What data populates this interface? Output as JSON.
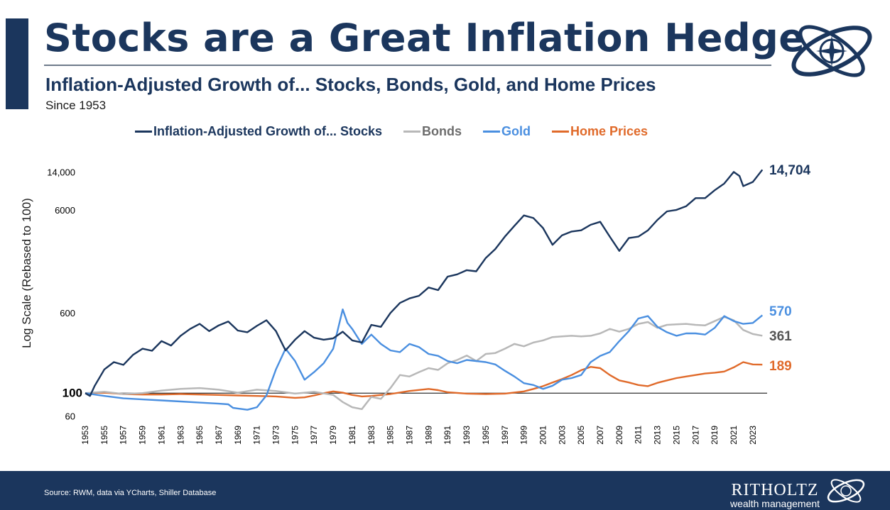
{
  "header": {
    "title": "Stocks are a Great Inflation Hedge",
    "subtitle": "Inflation-Adjusted Growth of... Stocks, Bonds, Gold, and Home Prices",
    "since": "Since 1953"
  },
  "legend": [
    {
      "label": "Inflation-Adjusted Growth of... Stocks",
      "color": "#1b365d"
    },
    {
      "label": "Bonds",
      "color": "#b8b8b8"
    },
    {
      "label": "Gold",
      "color": "#4a8fe0"
    },
    {
      "label": "Home Prices",
      "color": "#e06a2a"
    }
  ],
  "chart_data": {
    "type": "line",
    "ylabel": "Log Scale (Rebased to 100)",
    "yscale": "log",
    "ylim": [
      55,
      16000
    ],
    "xlim": [
      1953,
      2024.5
    ],
    "y_ticks": [
      {
        "value": 60,
        "label": "60"
      },
      {
        "value": 100,
        "label": "100"
      },
      {
        "value": 600,
        "label": "600"
      },
      {
        "value": 6000,
        "label": "6000"
      },
      {
        "value": 14000,
        "label": "14,000"
      }
    ],
    "x_ticks": [
      "1953",
      "1955",
      "1957",
      "1959",
      "1961",
      "1963",
      "1965",
      "1967",
      "1969",
      "1971",
      "1973",
      "1975",
      "1977",
      "1979",
      "1981",
      "1983",
      "1985",
      "1987",
      "1989",
      "1991",
      "1993",
      "1995",
      "1997",
      "1999",
      "2001",
      "2003",
      "2005",
      "2007",
      "2009",
      "2011",
      "2013",
      "2015",
      "2017",
      "2019",
      "2021",
      "2023"
    ],
    "baseline": 100,
    "series": [
      {
        "name": "Stocks",
        "color": "#1b365d",
        "end_label": "14,704",
        "points": [
          [
            1953,
            100
          ],
          [
            1953.5,
            94
          ],
          [
            1954,
            118
          ],
          [
            1955,
            170
          ],
          [
            1956,
            200
          ],
          [
            1957,
            188
          ],
          [
            1958,
            235
          ],
          [
            1959,
            270
          ],
          [
            1960,
            258
          ],
          [
            1961,
            320
          ],
          [
            1962,
            290
          ],
          [
            1963,
            360
          ],
          [
            1964,
            420
          ],
          [
            1965,
            470
          ],
          [
            1966,
            400
          ],
          [
            1967,
            455
          ],
          [
            1968,
            495
          ],
          [
            1969,
            405
          ],
          [
            1970,
            390
          ],
          [
            1971,
            450
          ],
          [
            1972,
            510
          ],
          [
            1973,
            400
          ],
          [
            1974,
            260
          ],
          [
            1975,
            330
          ],
          [
            1976,
            400
          ],
          [
            1977,
            345
          ],
          [
            1978,
            330
          ],
          [
            1979,
            340
          ],
          [
            1980,
            395
          ],
          [
            1981,
            325
          ],
          [
            1982,
            310
          ],
          [
            1983,
            460
          ],
          [
            1984,
            440
          ],
          [
            1985,
            600
          ],
          [
            1986,
            750
          ],
          [
            1987,
            830
          ],
          [
            1988,
            880
          ],
          [
            1989,
            1060
          ],
          [
            1990,
            1000
          ],
          [
            1991,
            1350
          ],
          [
            1992,
            1420
          ],
          [
            1993,
            1560
          ],
          [
            1994,
            1520
          ],
          [
            1995,
            2050
          ],
          [
            1996,
            2500
          ],
          [
            1997,
            3300
          ],
          [
            1998,
            4200
          ],
          [
            1999,
            5300
          ],
          [
            2000,
            5000
          ],
          [
            2001,
            4000
          ],
          [
            2002,
            2750
          ],
          [
            2003,
            3400
          ],
          [
            2004,
            3700
          ],
          [
            2005,
            3800
          ],
          [
            2006,
            4300
          ],
          [
            2007,
            4600
          ],
          [
            2008,
            3300
          ],
          [
            2009,
            2400
          ],
          [
            2010,
            3200
          ],
          [
            2011,
            3300
          ],
          [
            2012,
            3800
          ],
          [
            2013,
            4800
          ],
          [
            2014,
            5800
          ],
          [
            2015,
            6000
          ],
          [
            2016,
            6500
          ],
          [
            2017,
            7800
          ],
          [
            2018,
            7800
          ],
          [
            2019,
            9300
          ],
          [
            2020,
            10800
          ],
          [
            2021,
            14000
          ],
          [
            2021.6,
            12800
          ],
          [
            2022,
            10200
          ],
          [
            2023,
            11200
          ],
          [
            2024,
            14704
          ]
        ]
      },
      {
        "name": "Bonds",
        "color": "#b8b8b8",
        "end_label": "361",
        "points": [
          [
            1953,
            100
          ],
          [
            1955,
            103
          ],
          [
            1957,
            98
          ],
          [
            1959,
            100
          ],
          [
            1961,
            106
          ],
          [
            1963,
            110
          ],
          [
            1965,
            112
          ],
          [
            1967,
            108
          ],
          [
            1969,
            101
          ],
          [
            1971,
            108
          ],
          [
            1973,
            105
          ],
          [
            1975,
            99
          ],
          [
            1977,
            103
          ],
          [
            1979,
            96
          ],
          [
            1980,
            82
          ],
          [
            1981,
            73
          ],
          [
            1982,
            70
          ],
          [
            1983,
            92
          ],
          [
            1984,
            88
          ],
          [
            1985,
            112
          ],
          [
            1986,
            150
          ],
          [
            1987,
            145
          ],
          [
            1988,
            160
          ],
          [
            1989,
            175
          ],
          [
            1990,
            168
          ],
          [
            1991,
            195
          ],
          [
            1992,
            210
          ],
          [
            1993,
            232
          ],
          [
            1994,
            205
          ],
          [
            1995,
            240
          ],
          [
            1996,
            245
          ],
          [
            1997,
            270
          ],
          [
            1998,
            300
          ],
          [
            1999,
            285
          ],
          [
            2000,
            310
          ],
          [
            2001,
            325
          ],
          [
            2002,
            350
          ],
          [
            2003,
            355
          ],
          [
            2004,
            360
          ],
          [
            2005,
            355
          ],
          [
            2006,
            360
          ],
          [
            2007,
            380
          ],
          [
            2008,
            420
          ],
          [
            2009,
            395
          ],
          [
            2010,
            420
          ],
          [
            2011,
            470
          ],
          [
            2012,
            490
          ],
          [
            2013,
            430
          ],
          [
            2014,
            460
          ],
          [
            2015,
            465
          ],
          [
            2016,
            470
          ],
          [
            2017,
            460
          ],
          [
            2018,
            455
          ],
          [
            2019,
            500
          ],
          [
            2020,
            550
          ],
          [
            2021,
            510
          ],
          [
            2022,
            410
          ],
          [
            2023,
            375
          ],
          [
            2024,
            361
          ]
        ]
      },
      {
        "name": "Gold",
        "color": "#4a8fe0",
        "end_label": "570",
        "points": [
          [
            1953,
            100
          ],
          [
            1955,
            94
          ],
          [
            1957,
            89
          ],
          [
            1959,
            87
          ],
          [
            1961,
            85
          ],
          [
            1963,
            83
          ],
          [
            1965,
            81
          ],
          [
            1967,
            79
          ],
          [
            1968,
            78
          ],
          [
            1968.5,
            72
          ],
          [
            1969,
            71
          ],
          [
            1970,
            69
          ],
          [
            1971,
            73
          ],
          [
            1972,
            95
          ],
          [
            1973,
            170
          ],
          [
            1974,
            270
          ],
          [
            1975,
            205
          ],
          [
            1976,
            135
          ],
          [
            1977,
            160
          ],
          [
            1978,
            195
          ],
          [
            1979,
            270
          ],
          [
            1980,
            650
          ],
          [
            1980.5,
            480
          ],
          [
            1981,
            420
          ],
          [
            1982,
            300
          ],
          [
            1983,
            370
          ],
          [
            1984,
            300
          ],
          [
            1985,
            260
          ],
          [
            1986,
            250
          ],
          [
            1987,
            300
          ],
          [
            1988,
            280
          ],
          [
            1989,
            240
          ],
          [
            1990,
            230
          ],
          [
            1991,
            205
          ],
          [
            1992,
            195
          ],
          [
            1993,
            210
          ],
          [
            1994,
            205
          ],
          [
            1995,
            200
          ],
          [
            1996,
            190
          ],
          [
            1997,
            165
          ],
          [
            1998,
            145
          ],
          [
            1999,
            125
          ],
          [
            2000,
            120
          ],
          [
            2001,
            110
          ],
          [
            2002,
            118
          ],
          [
            2003,
            135
          ],
          [
            2004,
            140
          ],
          [
            2005,
            150
          ],
          [
            2006,
            200
          ],
          [
            2007,
            230
          ],
          [
            2008,
            250
          ],
          [
            2009,
            320
          ],
          [
            2010,
            400
          ],
          [
            2011,
            530
          ],
          [
            2012,
            560
          ],
          [
            2013,
            440
          ],
          [
            2014,
            390
          ],
          [
            2015,
            360
          ],
          [
            2016,
            380
          ],
          [
            2017,
            380
          ],
          [
            2018,
            370
          ],
          [
            2019,
            430
          ],
          [
            2020,
            560
          ],
          [
            2021,
            500
          ],
          [
            2022,
            470
          ],
          [
            2023,
            480
          ],
          [
            2024,
            570
          ]
        ]
      },
      {
        "name": "Home Prices",
        "color": "#e06a2a",
        "end_label": "189",
        "points": [
          [
            1953,
            100
          ],
          [
            1955,
            101
          ],
          [
            1957,
            98
          ],
          [
            1959,
            97
          ],
          [
            1961,
            97
          ],
          [
            1963,
            98
          ],
          [
            1965,
            97
          ],
          [
            1967,
            96
          ],
          [
            1969,
            95
          ],
          [
            1971,
            94
          ],
          [
            1973,
            93
          ],
          [
            1975,
            90
          ],
          [
            1976,
            91
          ],
          [
            1977,
            95
          ],
          [
            1978,
            100
          ],
          [
            1979,
            104
          ],
          [
            1980,
            101
          ],
          [
            1981,
            96
          ],
          [
            1982,
            93
          ],
          [
            1983,
            94
          ],
          [
            1985,
            98
          ],
          [
            1987,
            105
          ],
          [
            1989,
            110
          ],
          [
            1990,
            107
          ],
          [
            1991,
            102
          ],
          [
            1993,
            99
          ],
          [
            1995,
            98
          ],
          [
            1997,
            99
          ],
          [
            1999,
            104
          ],
          [
            2000,
            110
          ],
          [
            2001,
            117
          ],
          [
            2002,
            127
          ],
          [
            2003,
            137
          ],
          [
            2004,
            150
          ],
          [
            2005,
            167
          ],
          [
            2006,
            180
          ],
          [
            2007,
            175
          ],
          [
            2008,
            150
          ],
          [
            2009,
            133
          ],
          [
            2010,
            127
          ],
          [
            2011,
            120
          ],
          [
            2012,
            117
          ],
          [
            2013,
            126
          ],
          [
            2014,
            133
          ],
          [
            2015,
            140
          ],
          [
            2016,
            145
          ],
          [
            2017,
            150
          ],
          [
            2018,
            155
          ],
          [
            2019,
            158
          ],
          [
            2020,
            162
          ],
          [
            2021,
            178
          ],
          [
            2022,
            200
          ],
          [
            2023,
            190
          ],
          [
            2024,
            189
          ]
        ]
      }
    ]
  },
  "footer": {
    "source": "Source: RWM, data via YCharts, Shiller Database",
    "brand": "RITHOLTZ",
    "tagline": "wealth management"
  }
}
